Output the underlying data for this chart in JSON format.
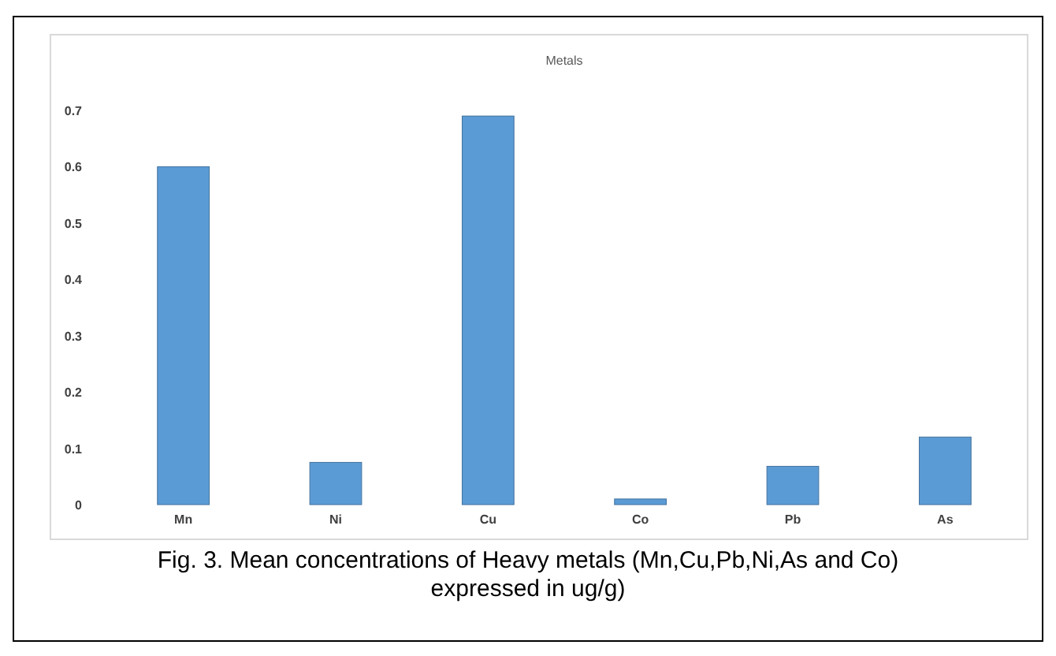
{
  "chart_data": {
    "type": "bar",
    "title": "Metals",
    "categories": [
      "Mn",
      "Ni",
      "Cu",
      "Co",
      "Pb",
      "As"
    ],
    "values": [
      0.6,
      0.075,
      0.69,
      0.01,
      0.068,
      0.12
    ],
    "color": "#5b9bd5",
    "ylim": [
      0,
      0.7
    ],
    "yticks": [
      0,
      0.1,
      0.2,
      0.3,
      0.4,
      0.5,
      0.6,
      0.7
    ],
    "grid": false,
    "annotations": [
      "Fig. 3. Mean concentrations of Heavy metals (Mn,Cu,Pb,Ni,As and Co) expressed in ug/g)"
    ]
  }
}
